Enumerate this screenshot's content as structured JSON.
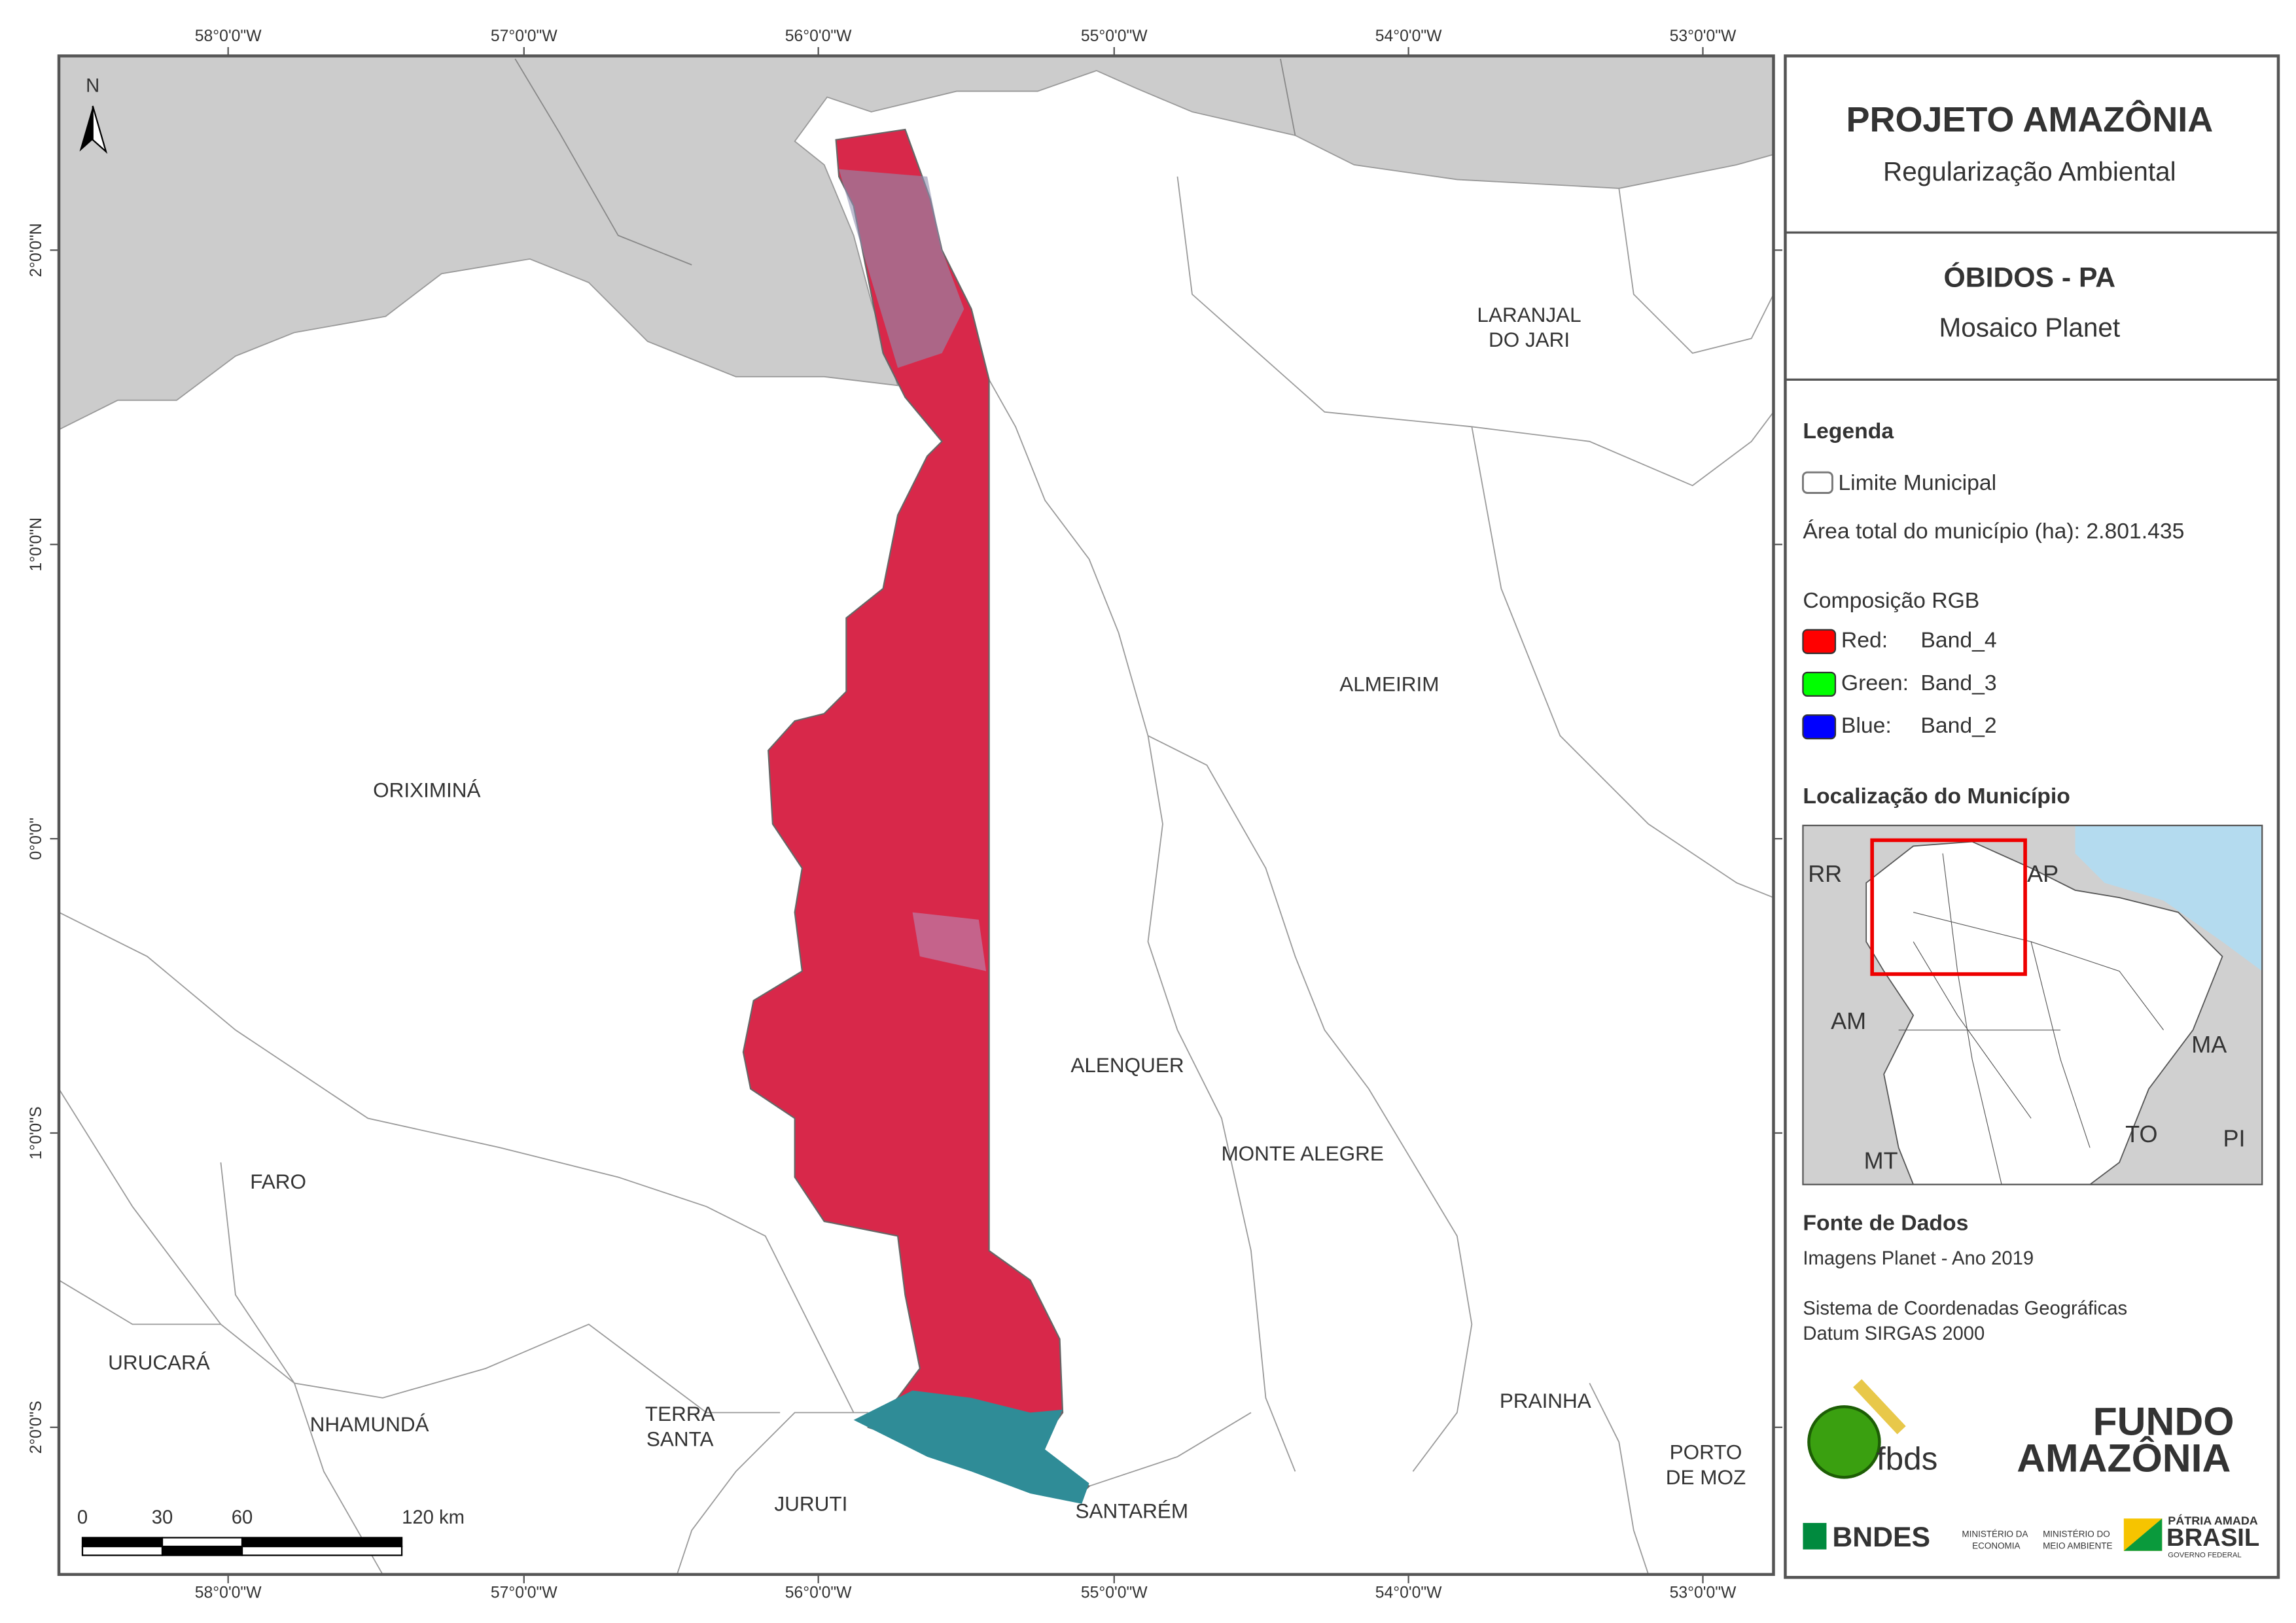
{
  "frame": {
    "top_labels": [
      "58°0'0\"W",
      "57°0'0\"W",
      "56°0'0\"W",
      "55°0'0\"W",
      "54°0'0\"W",
      "53°0'0\"W"
    ],
    "bottom_labels": [
      "58°0'0\"W",
      "57°0'0\"W",
      "56°0'0\"W",
      "55°0'0\"W",
      "54°0'0\"W",
      "53°0'0\"W"
    ],
    "left_labels": [
      "2°0'0\"N",
      "1°0'0\"N",
      "0°0'0\"",
      "1°0'0\"S",
      "2°0'0\"S"
    ],
    "north": "N"
  },
  "map_labels": [
    [
      "ORIXIMINÁ"
    ],
    [
      "LARANJAL",
      "DO JARI"
    ],
    [
      "ALMEIRIM"
    ],
    [
      "ALENQUER"
    ],
    [
      "MONTE ALEGRE"
    ],
    [
      "FARO"
    ],
    [
      "URUCARÁ"
    ],
    [
      "NHAMUNDÁ"
    ],
    [
      "TERRA",
      "SANTA"
    ],
    [
      "JURUTI"
    ],
    [
      "SANTARÉM"
    ],
    [
      "PRAINHA"
    ],
    [
      "PORTO",
      "DE MOZ"
    ]
  ],
  "scale_bar": {
    "ticks": [
      0,
      30,
      60,
      {
        "value": 120,
        "label": "120 km"
      }
    ]
  },
  "panel": {
    "title": "PROJETO AMAZÔNIA",
    "subtitle": "Regularização Ambiental",
    "municipality": "ÓBIDOS - PA",
    "product": "Mosaico Planet",
    "legend_title": "Legenda",
    "limit_label": "Limite Municipal",
    "area_text": "Área total do município (ha): 2.801.435",
    "rgb_title": "Composição RGB",
    "rgb": [
      {
        "channel": "Red:",
        "band": "Band_4",
        "color": "#ff0000"
      },
      {
        "channel": "Green:",
        "band": "Band_3",
        "color": "#00ff00"
      },
      {
        "channel": "Blue:",
        "band": "Band_2",
        "color": "#0000ff"
      }
    ],
    "location_title": "Localização do Município",
    "inset_labels": [
      "RR",
      "AP",
      "AM",
      "MA",
      "TO",
      "PI",
      "MT"
    ],
    "sources_title": "Fonte de Dados",
    "sources": [
      "Imagens Planet - Ano 2019",
      "Sistema de Coordenadas Geográficas",
      "Datum SIRGAS 2000"
    ],
    "logos": {
      "fbds": "fbds",
      "fundo_1": "FUNDO",
      "fundo_2": "AMAZÔNIA",
      "bndes": "BNDES",
      "min_economia": [
        "MINISTÉRIO DA",
        "ECONOMIA"
      ],
      "min_ambiente": [
        "MINISTÉRIO DO",
        "MEIO AMBIENTE"
      ],
      "brasil_1": "PÁTRIA AMADA",
      "brasil_2": "BRASIL",
      "brasil_3": "GOVERNO FEDERAL"
    }
  }
}
